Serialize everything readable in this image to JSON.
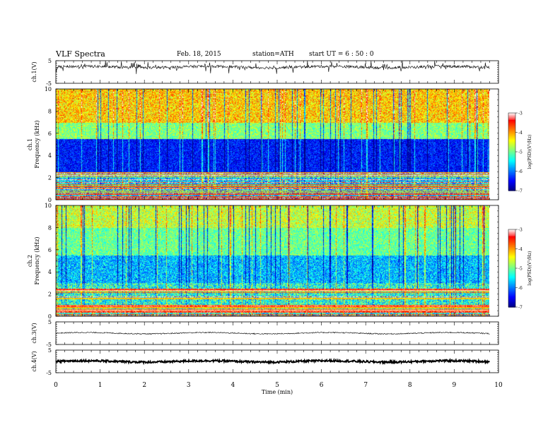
{
  "header": {
    "title": "VLF  Spectra",
    "date": "Feb. 18, 2015",
    "station": "station=ATH",
    "start": "start  UT  =   6  : 50 : 0"
  },
  "chart_data": [
    {
      "type": "line",
      "id": "ch1",
      "ylabel": "ch.1(V)",
      "yticks": [
        "5",
        "-5"
      ],
      "ylim": [
        -5,
        5
      ],
      "x_range_min": [
        0,
        9.8
      ],
      "description_level": "waveform around +2 V with spiky fluctuations"
    },
    {
      "type": "heatmap",
      "id": "spec1",
      "ylabel": [
        "ch.1",
        "Frequency  (kHz)"
      ],
      "yticks": [
        "0",
        "2",
        "4",
        "6",
        "8",
        "10"
      ],
      "ylim_khz": [
        0,
        10
      ],
      "colorbar": {
        "label": "log(PSD)(V²/Hz)",
        "ticks": [
          "-3",
          "-4",
          "-5",
          "-6",
          "-7"
        ],
        "range": [
          -7,
          -3
        ]
      }
    },
    {
      "type": "heatmap",
      "id": "spec2",
      "ylabel": [
        "ch.2",
        "Frequency  (kHz)"
      ],
      "yticks": [
        "0",
        "2",
        "4",
        "6",
        "8",
        "10"
      ],
      "ylim_khz": [
        0,
        10
      ],
      "colorbar": {
        "label": "log(PSD)(V²/Hz)",
        "ticks": [
          "-3",
          "-4",
          "-5",
          "-6",
          "-7"
        ],
        "range": [
          -7,
          -3
        ]
      }
    },
    {
      "type": "line",
      "id": "ch3",
      "ylabel": "ch.3(V)",
      "yticks": [
        "5",
        "-5"
      ],
      "ylim": [
        -5,
        5
      ],
      "level": 0
    },
    {
      "type": "line",
      "id": "ch4",
      "ylabel": "ch.4(V)",
      "yticks": [
        "5",
        "-5"
      ],
      "ylim": [
        -5,
        5
      ],
      "level": 0
    }
  ],
  "xaxis": {
    "label": "Time  (min)",
    "ticks": [
      "0",
      "1",
      "2",
      "3",
      "4",
      "5",
      "6",
      "7",
      "8",
      "9",
      "10"
    ],
    "xlim": [
      0,
      10
    ],
    "data_end": 9.8
  }
}
